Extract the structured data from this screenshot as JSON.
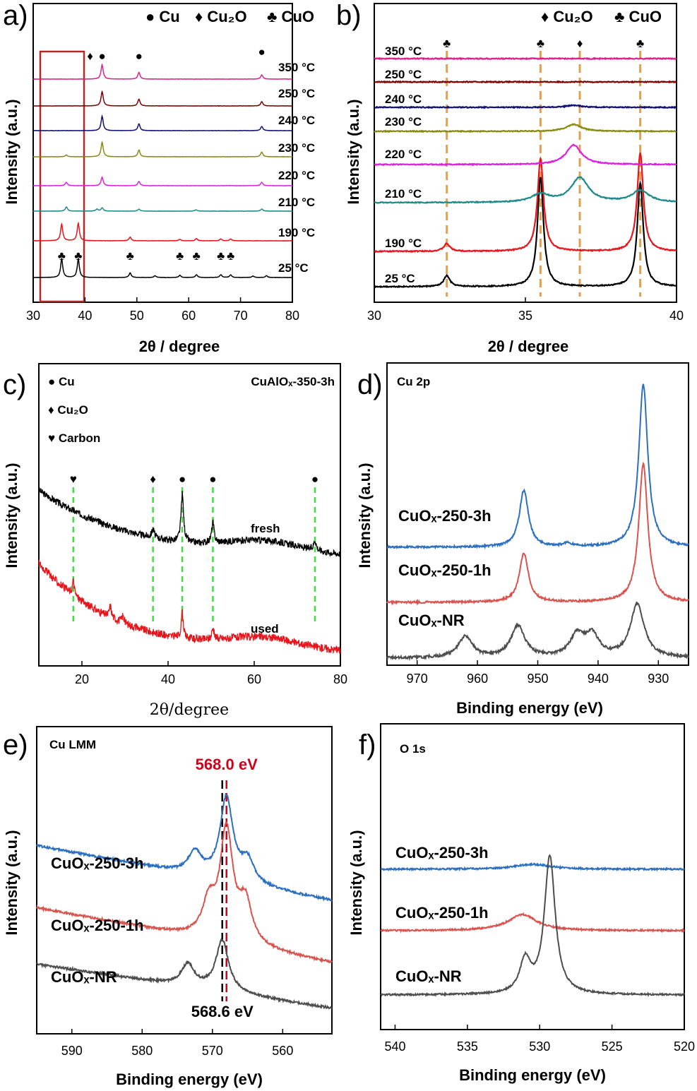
{
  "figure": {
    "panels": [
      {
        "id": "a",
        "letter": "a)",
        "xlabel": "2θ / degree",
        "ylabel": "Intensity (a.u.)",
        "legend": [
          "● Cu",
          "♦ Cu₂O",
          "♣ CuO"
        ]
      },
      {
        "id": "b",
        "letter": "b)",
        "xlabel": "2θ / degree",
        "ylabel": "Intensity (a.u.)",
        "legend": [
          "♦ Cu₂O",
          "♣ CuO"
        ]
      },
      {
        "id": "c",
        "letter": "c)",
        "xlabel": "2θ/degree",
        "ylabel": "Intensity (a.u.)",
        "title": "CuAlOₓ-350-3h",
        "legend": [
          "● Cu",
          "♦ Cu₂O",
          "♥ Carbon"
        ]
      },
      {
        "id": "d",
        "letter": "d)",
        "xlabel": "Binding energy (eV)",
        "ylabel": "Intensity (a.u.)",
        "title": "Cu 2p"
      },
      {
        "id": "e",
        "letter": "e)",
        "xlabel": "Binding energy (eV)",
        "ylabel": "Intensity (a.u.)",
        "title": "Cu LMM",
        "annotations": [
          "568.0 eV",
          "568.6 eV"
        ]
      },
      {
        "id": "f",
        "letter": "f)",
        "xlabel": "Binding energy (eV)",
        "ylabel": "Intensity (a.u.)",
        "title": "O 1s"
      }
    ]
  },
  "chart_data": [
    {
      "panel": "a",
      "type": "line",
      "xlabel": "2θ / degree",
      "ylabel": "Intensity (a.u.)",
      "xlim": [
        30,
        80
      ],
      "xticks": [
        30,
        40,
        50,
        60,
        70,
        80
      ],
      "legend": [
        "Cu",
        "Cu₂O",
        "CuO"
      ],
      "series": [
        {
          "name": "25 °C",
          "color": "#000000",
          "peaks": [
            [
              35.5,
              1.0
            ],
            [
              38.7,
              1.0
            ],
            [
              48.7,
              0.25
            ],
            [
              53.5,
              0.1
            ],
            [
              58.3,
              0.12
            ],
            [
              61.5,
              0.15
            ],
            [
              66.2,
              0.15
            ],
            [
              68.1,
              0.15
            ],
            [
              72.4,
              0.08
            ],
            [
              75.0,
              0.1
            ]
          ]
        },
        {
          "name": "190 °C",
          "color": "#e8141b",
          "peaks": [
            [
              35.5,
              0.9
            ],
            [
              38.7,
              0.95
            ],
            [
              48.7,
              0.2
            ],
            [
              58.3,
              0.08
            ],
            [
              61.5,
              0.12
            ],
            [
              66.2,
              0.1
            ],
            [
              68.1,
              0.1
            ]
          ]
        },
        {
          "name": "210 °C",
          "color": "#1f8a8a",
          "peaks": [
            [
              36.4,
              0.25
            ],
            [
              42.3,
              0.12
            ],
            [
              43.3,
              0.2
            ],
            [
              50.4,
              0.12
            ],
            [
              61.4,
              0.08
            ],
            [
              74.1,
              0.12
            ]
          ]
        },
        {
          "name": "220 °C",
          "color": "#e020e0",
          "peaks": [
            [
              36.4,
              0.2
            ],
            [
              43.3,
              0.5
            ],
            [
              50.4,
              0.25
            ],
            [
              74.1,
              0.2
            ]
          ]
        },
        {
          "name": "230 °C",
          "color": "#8a8a10",
          "peaks": [
            [
              36.4,
              0.1
            ],
            [
              43.3,
              0.85
            ],
            [
              50.4,
              0.4
            ],
            [
              74.1,
              0.28
            ]
          ]
        },
        {
          "name": "240 °C",
          "color": "#101075",
          "peaks": [
            [
              43.3,
              0.85
            ],
            [
              50.4,
              0.4
            ],
            [
              74.1,
              0.25
            ]
          ]
        },
        {
          "name": "250 °C",
          "color": "#800000",
          "peaks": [
            [
              43.3,
              0.85
            ],
            [
              50.4,
              0.4
            ],
            [
              74.1,
              0.25
            ]
          ]
        },
        {
          "name": "350 °C",
          "color": "#e0208c",
          "peaks": [
            [
              43.3,
              0.85
            ],
            [
              50.4,
              0.4
            ],
            [
              74.1,
              0.25
            ]
          ]
        }
      ],
      "markers": [
        {
          "symbol": "♦",
          "x": 41.8
        },
        {
          "symbol": "●",
          "x": 43.3
        },
        {
          "symbol": "●",
          "x": 50.4
        },
        {
          "symbol": "●",
          "x": 74.1
        },
        {
          "symbol": "♣",
          "x": 35.5
        },
        {
          "symbol": "♣",
          "x": 38.7
        },
        {
          "symbol": "♣",
          "x": 48.7
        },
        {
          "symbol": "♣",
          "x": 58.3
        },
        {
          "symbol": "♣",
          "x": 61.5
        },
        {
          "symbol": "♣",
          "x": 66.2
        },
        {
          "symbol": "♣",
          "x": 68.1
        }
      ],
      "highlight_box": [
        32,
        39.5
      ]
    },
    {
      "panel": "b",
      "type": "line",
      "xlabel": "2θ / degree",
      "ylabel": "Intensity (a.u.)",
      "xlim": [
        30,
        40
      ],
      "xticks": [
        30,
        35,
        40
      ],
      "legend": [
        "Cu₂O",
        "CuO"
      ],
      "series": [
        {
          "name": "25 °C",
          "color": "#000000",
          "peaks": [
            [
              32.4,
              0.1
            ],
            [
              35.5,
              1.0
            ],
            [
              38.8,
              0.95
            ]
          ]
        },
        {
          "name": "190 °C",
          "color": "#e8141b",
          "peaks": [
            [
              32.4,
              0.07
            ],
            [
              35.5,
              0.85
            ],
            [
              38.8,
              0.9
            ]
          ]
        },
        {
          "name": "210 °C",
          "color": "#1f8a8a",
          "peaks": [
            [
              35.5,
              0.08
            ],
            [
              36.8,
              0.25
            ],
            [
              38.8,
              0.12
            ]
          ]
        },
        {
          "name": "220 °C",
          "color": "#e020e0",
          "peaks": [
            [
              36.6,
              0.2
            ]
          ]
        },
        {
          "name": "230 °C",
          "color": "#8a8a10",
          "peaks": [
            [
              36.6,
              0.07
            ]
          ]
        },
        {
          "name": "240 °C",
          "color": "#101075",
          "peaks": [
            [
              36.6,
              0.02
            ]
          ]
        },
        {
          "name": "250 °C",
          "color": "#800000",
          "peaks": []
        },
        {
          "name": "350 °C",
          "color": "#e0208c",
          "peaks": []
        }
      ],
      "reference_lines": [
        {
          "x": 32.4,
          "symbol": "♣"
        },
        {
          "x": 35.5,
          "symbol": "♣"
        },
        {
          "x": 36.8,
          "symbol": "♦"
        },
        {
          "x": 38.8,
          "symbol": "♣"
        }
      ]
    },
    {
      "panel": "c",
      "type": "line",
      "title": "CuAlOₓ-350-3h",
      "xlabel": "2θ/degree",
      "ylabel": "Intensity (a.u.)",
      "xlim": [
        10,
        80
      ],
      "xticks": [
        20,
        40,
        60,
        80
      ],
      "legend": [
        "Cu",
        "Cu₂O",
        "Carbon"
      ],
      "series": [
        {
          "name": "fresh",
          "color": "#000000"
        },
        {
          "name": "used",
          "color": "#e8141b"
        }
      ],
      "reference_lines": [
        {
          "x": 18.0,
          "symbol": "♥"
        },
        {
          "x": 36.5,
          "symbol": "♦"
        },
        {
          "x": 43.3,
          "symbol": "●"
        },
        {
          "x": 50.4,
          "symbol": "●"
        },
        {
          "x": 74.1,
          "symbol": "●"
        }
      ]
    },
    {
      "panel": "d",
      "type": "line",
      "title": "Cu 2p",
      "xlabel": "Binding energy (eV)",
      "ylabel": "Intensity (a.u.)",
      "xlim": [
        975,
        925
      ],
      "xticks": [
        970,
        960,
        950,
        940,
        930
      ],
      "series": [
        {
          "name": "CuOₓ-250-3h",
          "color": "#2b6fc2",
          "peaks": [
            [
              952.3,
              0.35
            ],
            [
              932.5,
              1.0
            ],
            [
              945.0,
              0.02
            ]
          ]
        },
        {
          "name": "CuOₓ-250-1h",
          "color": "#d9534f",
          "peaks": [
            [
              952.3,
              0.3
            ],
            [
              932.5,
              0.85
            ]
          ]
        },
        {
          "name": "CuOₓ-NR",
          "color": "#4d4d4d",
          "peaks": [
            [
              962.0,
              0.1
            ],
            [
              953.3,
              0.15
            ],
            [
              943.5,
              0.1
            ],
            [
              941.0,
              0.1
            ],
            [
              933.5,
              0.25
            ]
          ]
        }
      ]
    },
    {
      "panel": "e",
      "type": "line",
      "title": "Cu LMM",
      "xlabel": "Binding energy (eV)",
      "ylabel": "Intensity (a.u.)",
      "xlim": [
        595,
        553
      ],
      "xticks": [
        590,
        580,
        570,
        560
      ],
      "series": [
        {
          "name": "CuOₓ-250-3h",
          "color": "#2b6fc2",
          "peaks": [
            [
              568.0,
              0.45
            ],
            [
              572.5,
              0.12
            ],
            [
              565.0,
              0.12
            ]
          ]
        },
        {
          "name": "CuOₓ-250-1h",
          "color": "#d9534f",
          "peaks": [
            [
              568.0,
              0.6
            ],
            [
              570.5,
              0.18
            ],
            [
              565.3,
              0.22
            ]
          ]
        },
        {
          "name": "CuOₓ-NR",
          "color": "#4d4d4d",
          "peaks": [
            [
              568.6,
              0.28
            ],
            [
              573.5,
              0.12
            ]
          ]
        }
      ],
      "reference_lines": [
        {
          "x": 568.0,
          "label": "568.0 eV",
          "color": "#d0021b"
        },
        {
          "x": 568.6,
          "label": "568.6 eV",
          "color": "#000000"
        }
      ]
    },
    {
      "panel": "f",
      "type": "line",
      "title": "O 1s",
      "xlabel": "Binding energy (eV)",
      "ylabel": "Intensity (a.u.)",
      "xlim": [
        541,
        520
      ],
      "xticks": [
        540,
        535,
        530,
        525,
        520
      ],
      "series": [
        {
          "name": "CuOₓ-250-3h",
          "color": "#2b6fc2",
          "peaks": [
            [
              530.5,
              0.03
            ]
          ]
        },
        {
          "name": "CuOₓ-250-1h",
          "color": "#d9534f",
          "peaks": [
            [
              531.2,
              0.1
            ]
          ]
        },
        {
          "name": "CuOₓ-NR",
          "color": "#4d4d4d",
          "peaks": [
            [
              529.3,
              0.85
            ],
            [
              531.0,
              0.2
            ]
          ]
        }
      ]
    }
  ]
}
